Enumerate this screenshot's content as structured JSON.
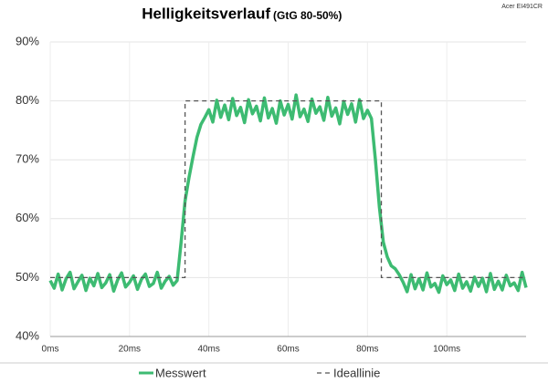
{
  "chart_data": {
    "type": "line",
    "title": "Helligkeitsverlauf",
    "subtitle": "(GtG 80-50%)",
    "annotation": "Acer EI491CR",
    "xlim": [
      0,
      120
    ],
    "ylim": [
      40,
      90
    ],
    "xticks": [
      {
        "value": 0,
        "label": "0ms"
      },
      {
        "value": 20,
        "label": "20ms"
      },
      {
        "value": 40,
        "label": "40ms"
      },
      {
        "value": 60,
        "label": "60ms"
      },
      {
        "value": 80,
        "label": "80ms"
      },
      {
        "value": 100,
        "label": "100ms"
      }
    ],
    "yticks": [
      {
        "value": 40,
        "label": "40%"
      },
      {
        "value": 50,
        "label": "50%"
      },
      {
        "value": 60,
        "label": "60%"
      },
      {
        "value": 70,
        "label": "70%"
      },
      {
        "value": 80,
        "label": "80%"
      },
      {
        "value": 90,
        "label": "90%"
      }
    ],
    "grid": true,
    "series": [
      {
        "name": "Messwert",
        "color": "#3dbb72",
        "line_style": "solid",
        "x": [
          0,
          1,
          2,
          3,
          4,
          5,
          6,
          7,
          8,
          9,
          10,
          11,
          12,
          13,
          14,
          15,
          16,
          17,
          18,
          19,
          20,
          21,
          22,
          23,
          24,
          25,
          26,
          27,
          28,
          29,
          30,
          31,
          32,
          33,
          34,
          35,
          36,
          37,
          38,
          39,
          40,
          41,
          42,
          43,
          44,
          45,
          46,
          47,
          48,
          49,
          50,
          51,
          52,
          53,
          54,
          55,
          56,
          57,
          58,
          59,
          60,
          61,
          62,
          63,
          64,
          65,
          66,
          67,
          68,
          69,
          70,
          71,
          72,
          73,
          74,
          75,
          76,
          77,
          78,
          79,
          80,
          81,
          82,
          83,
          84,
          85,
          86,
          87,
          88,
          89,
          90,
          91,
          92,
          93,
          94,
          95,
          96,
          97,
          98,
          99,
          100,
          101,
          102,
          103,
          104,
          105,
          106,
          107,
          108,
          109,
          110,
          111,
          112,
          113,
          114,
          115,
          116,
          117,
          118,
          119,
          120
        ],
        "values": [
          49.5,
          48.2,
          50.6,
          47.9,
          49.8,
          50.9,
          48.1,
          49.3,
          50.4,
          47.8,
          49.9,
          48.6,
          50.7,
          48.3,
          49.1,
          50.5,
          47.7,
          49.6,
          50.8,
          48.4,
          49.2,
          50.3,
          48.0,
          49.7,
          50.6,
          48.5,
          49.0,
          50.9,
          48.2,
          49.4,
          50.2,
          48.7,
          49.5,
          56,
          63,
          67,
          70.5,
          73.8,
          76,
          77.2,
          78.5,
          76.4,
          80.1,
          77.2,
          79.3,
          76.8,
          80.4,
          77.5,
          78.9,
          76.3,
          80.2,
          77.8,
          79.1,
          76.6,
          80.5,
          77.1,
          78.7,
          76.2,
          80.0,
          77.6,
          79.4,
          76.9,
          81.0,
          77.3,
          78.6,
          76.5,
          80.3,
          77.9,
          79.0,
          76.7,
          80.6,
          77.4,
          78.8,
          76.1,
          79.9,
          77.7,
          79.5,
          76.4,
          80.2,
          77.0,
          78.4,
          77,
          70,
          62,
          56,
          53.5,
          52,
          51.5,
          50.5,
          49.2,
          47.6,
          50.5,
          48.1,
          49.8,
          47.9,
          50.8,
          48.4,
          49.0,
          47.5,
          50.3,
          48.8,
          49.6,
          47.8,
          50.6,
          48.2,
          49.3,
          47.7,
          50.1,
          48.5,
          49.9,
          47.6,
          50.7,
          48.0,
          49.4,
          47.9,
          50.4,
          48.6,
          49.1,
          47.8,
          50.9,
          48.3
        ]
      },
      {
        "name": "Ideallinie",
        "color": "#555555",
        "line_style": "dashed",
        "x": [
          0,
          34,
          34,
          83.5,
          83.5,
          120
        ],
        "values": [
          50,
          50,
          80,
          80,
          50,
          50
        ]
      }
    ]
  }
}
